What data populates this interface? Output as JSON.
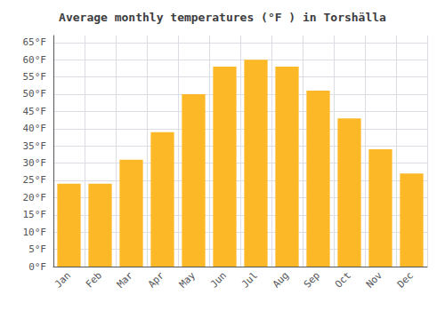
{
  "chart_data": {
    "type": "bar",
    "title": "Average monthly temperatures (°F ) in Torshälla",
    "categories": [
      "Jan",
      "Feb",
      "Mar",
      "Apr",
      "May",
      "Jun",
      "Jul",
      "Aug",
      "Sep",
      "Oct",
      "Nov",
      "Dec"
    ],
    "values": [
      24,
      24,
      31,
      39,
      50,
      58,
      60,
      58,
      51,
      43,
      34,
      27
    ],
    "color": "#FDB827",
    "ylim": [
      0,
      67
    ],
    "yticks": [
      {
        "value": 0,
        "label": "0°F"
      },
      {
        "value": 5,
        "label": "5°F"
      },
      {
        "value": 10,
        "label": "10°F"
      },
      {
        "value": 15,
        "label": "15°F"
      },
      {
        "value": 20,
        "label": "20°F"
      },
      {
        "value": 25,
        "label": "25°F"
      },
      {
        "value": 30,
        "label": "30°F"
      },
      {
        "value": 35,
        "label": "35°F"
      },
      {
        "value": 40,
        "label": "40°F"
      },
      {
        "value": 45,
        "label": "45°F"
      },
      {
        "value": 50,
        "label": "50°F"
      },
      {
        "value": 55,
        "label": "55°F"
      },
      {
        "value": 60,
        "label": "60°F"
      },
      {
        "value": 65,
        "label": "65°F"
      }
    ],
    "grid": true
  }
}
